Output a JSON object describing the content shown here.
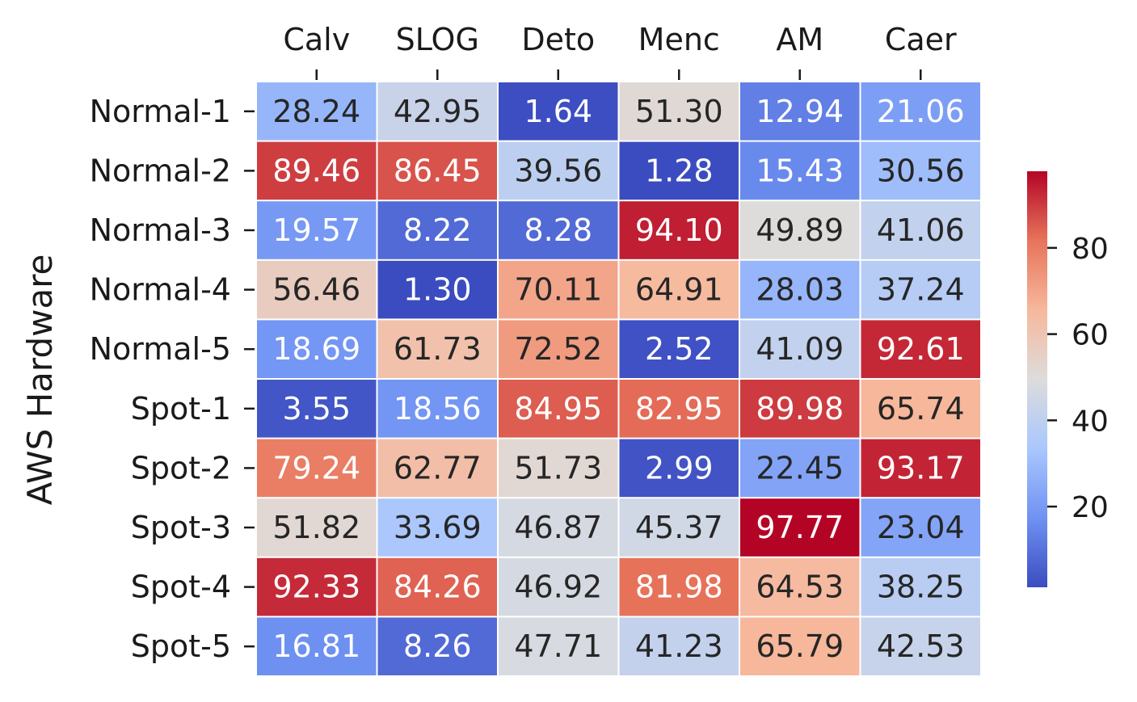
{
  "chart_data": {
    "type": "heatmap",
    "title": "",
    "xlabel": "",
    "ylabel": "AWS Hardware",
    "columns": [
      "Calv",
      "SLOG",
      "Deto",
      "Menc",
      "AM",
      "Caer"
    ],
    "rows": [
      "Normal-1",
      "Normal-2",
      "Normal-3",
      "Normal-4",
      "Normal-5",
      "Spot-1",
      "Spot-2",
      "Spot-3",
      "Spot-4",
      "Spot-5"
    ],
    "values": [
      [
        28.24,
        42.95,
        1.64,
        51.3,
        12.94,
        21.06
      ],
      [
        89.46,
        86.45,
        39.56,
        1.28,
        15.43,
        30.56
      ],
      [
        19.57,
        8.22,
        8.28,
        94.1,
        49.89,
        41.06
      ],
      [
        56.46,
        1.3,
        70.11,
        64.91,
        28.03,
        37.24
      ],
      [
        18.69,
        61.73,
        72.52,
        2.52,
        41.09,
        92.61
      ],
      [
        3.55,
        18.56,
        84.95,
        82.95,
        89.98,
        65.74
      ],
      [
        79.24,
        62.77,
        51.73,
        2.99,
        22.45,
        93.17
      ],
      [
        51.82,
        33.69,
        46.87,
        45.37,
        97.77,
        23.04
      ],
      [
        92.33,
        84.26,
        46.92,
        81.98,
        64.53,
        38.25
      ],
      [
        16.81,
        8.26,
        47.71,
        41.23,
        65.79,
        42.53
      ]
    ],
    "value_labels": [
      [
        "28.24",
        "42.95",
        "1.64",
        "51.30",
        "12.94",
        "21.06"
      ],
      [
        "89.46",
        "86.45",
        "39.56",
        "1.28",
        "15.43",
        "30.56"
      ],
      [
        "19.57",
        "8.22",
        "8.28",
        "94.10",
        "49.89",
        "41.06"
      ],
      [
        "56.46",
        "1.30",
        "70.11",
        "64.91",
        "28.03",
        "37.24"
      ],
      [
        "18.69",
        "61.73",
        "72.52",
        "2.52",
        "41.09",
        "92.61"
      ],
      [
        "3.55",
        "18.56",
        "84.95",
        "82.95",
        "89.98",
        "65.74"
      ],
      [
        "79.24",
        "62.77",
        "51.73",
        "2.99",
        "22.45",
        "93.17"
      ],
      [
        "51.82",
        "33.69",
        "46.87",
        "45.37",
        "97.77",
        "23.04"
      ],
      [
        "92.33",
        "84.26",
        "46.92",
        "81.98",
        "64.53",
        "38.25"
      ],
      [
        "16.81",
        "8.26",
        "47.71",
        "41.23",
        "65.79",
        "42.53"
      ]
    ],
    "x_tick_position": "top",
    "colormap": "coolwarm",
    "colormap_stops": [
      "#3b4cc0",
      "#6f92f3",
      "#aac7fd",
      "#dddcdc",
      "#f7b89c",
      "#e7745b",
      "#b40426"
    ],
    "color_range": [
      1.28,
      97.77
    ],
    "colorbar": {
      "position": "right",
      "ticks": [
        20,
        40,
        60,
        80
      ],
      "tick_labels": [
        "20",
        "40",
        "60",
        "80"
      ]
    },
    "cell_border_color": "#ffffff",
    "text_dark_color": "#262626",
    "text_light_color": "#ffffff"
  }
}
